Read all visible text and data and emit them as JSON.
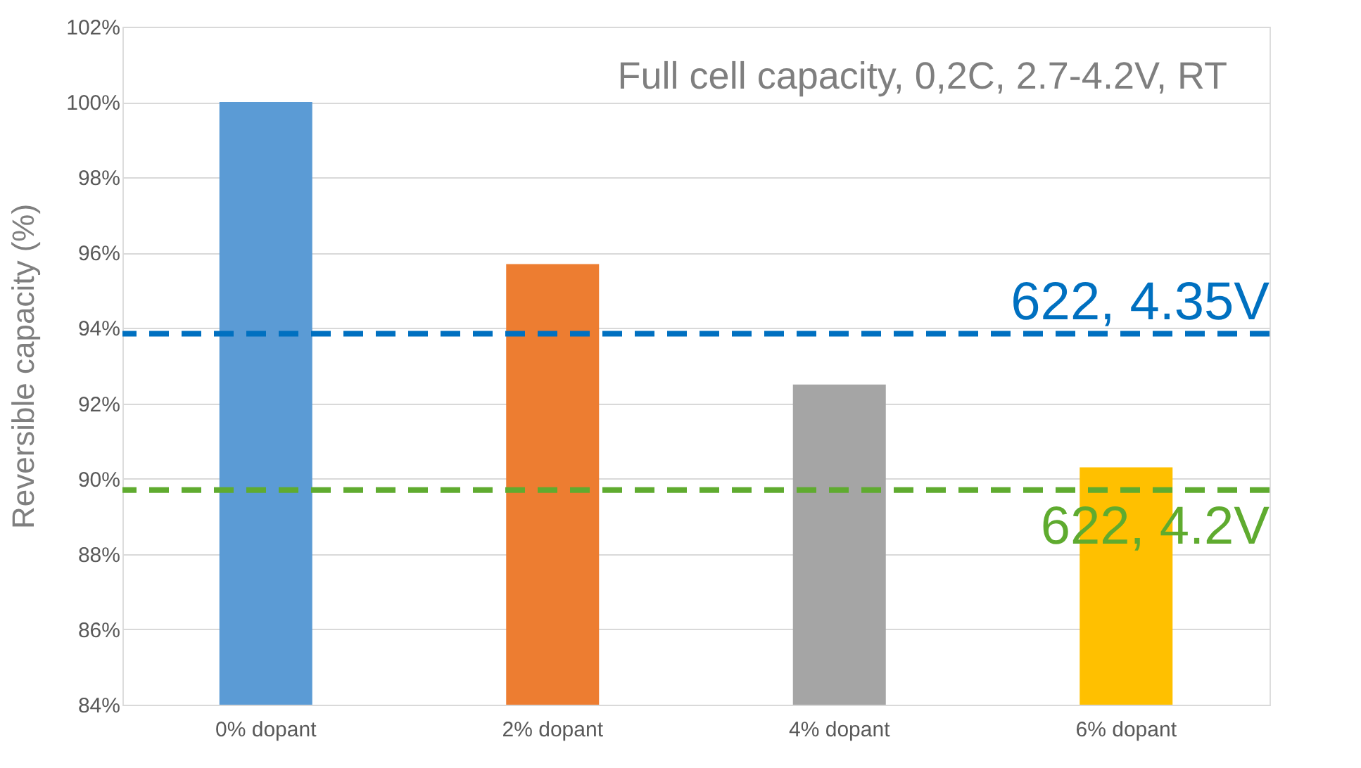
{
  "chart_data": {
    "type": "bar",
    "ylabel": "Reversible  capacity  (%)",
    "categories": [
      "0% dopant",
      "2% dopant",
      "4% dopant",
      "6% dopant"
    ],
    "values": [
      100,
      95.7,
      92.5,
      90.3
    ],
    "colors": [
      "#5b9bd5",
      "#ed7d31",
      "#a5a5a5",
      "#ffc000"
    ],
    "ylim": [
      84,
      102
    ],
    "yticks": [
      {
        "value": 84,
        "label": "84%"
      },
      {
        "value": 86,
        "label": "86%"
      },
      {
        "value": 88,
        "label": "88%"
      },
      {
        "value": 90,
        "label": "90%"
      },
      {
        "value": 92,
        "label": "92%"
      },
      {
        "value": 94,
        "label": "94%"
      },
      {
        "value": 96,
        "label": "96%"
      },
      {
        "value": 98,
        "label": "98%"
      },
      {
        "value": 100,
        "label": "100%"
      },
      {
        "value": 102,
        "label": "102%"
      }
    ],
    "grid": "y",
    "ref_lines": [
      {
        "axis": "y",
        "value": 93.85,
        "label": "622, 4.35V",
        "color": "#0070c0",
        "line_style": "dashed"
      },
      {
        "axis": "y",
        "value": 89.7,
        "label": "622, 4.2V",
        "color": "#5fab2f",
        "line_style": "dashed"
      }
    ],
    "annotations": [
      "Full cell capacity, 0,2C, 2.7-4.2V, RT"
    ]
  }
}
